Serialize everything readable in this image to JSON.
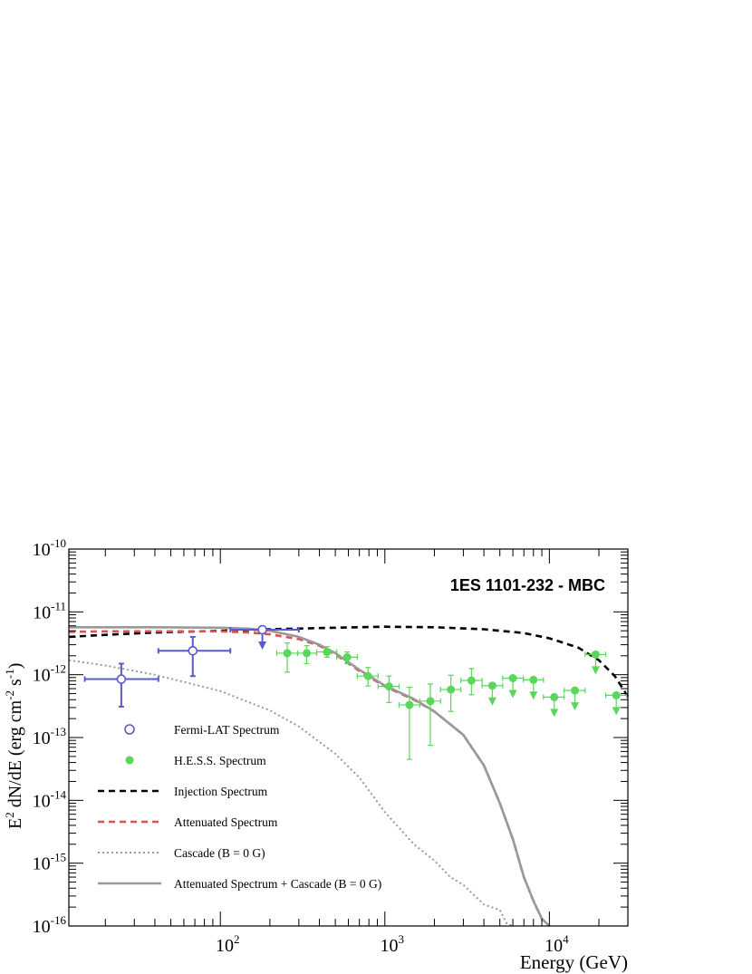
{
  "chart_data": {
    "type": "scatter",
    "title": "1ES 1101-232 - MBC",
    "xlabel": "Energy (GeV)",
    "ylabel_parts": [
      "E",
      "2",
      " dN/dE (erg cm",
      "-2",
      " s",
      "-1",
      ")"
    ],
    "x_scale": "log",
    "y_scale": "log",
    "xlim": [
      12,
      30000
    ],
    "ylim": [
      1e-16,
      1e-10
    ],
    "x_ticks": [
      {
        "value": 100,
        "base": "10",
        "exp": "2"
      },
      {
        "value": 1000,
        "base": "10",
        "exp": "3"
      },
      {
        "value": 10000,
        "base": "10",
        "exp": "4"
      }
    ],
    "y_ticks": [
      {
        "value": 1e-16,
        "base": "10",
        "exp": "-16"
      },
      {
        "value": 1e-15,
        "base": "10",
        "exp": "-15"
      },
      {
        "value": 1e-14,
        "base": "10",
        "exp": "-14"
      },
      {
        "value": 1e-13,
        "base": "10",
        "exp": "-13"
      },
      {
        "value": 1e-12,
        "base": "10",
        "exp": "-12"
      },
      {
        "value": 1e-11,
        "base": "10",
        "exp": "-11"
      },
      {
        "value": 1e-10,
        "base": "10",
        "exp": "-10"
      }
    ],
    "grid": false,
    "legend_position": "lower-left",
    "legend": [
      {
        "label": "Fermi-LAT Spectrum",
        "kind": "open-circle",
        "color": "#5a5acc"
      },
      {
        "label": "H.E.S.S. Spectrum",
        "kind": "filled-circle",
        "color": "#5ad65a"
      },
      {
        "label": "Injection Spectrum",
        "kind": "dashed-line",
        "color": "#000000"
      },
      {
        "label": "Attenuated Spectrum",
        "kind": "dashed-line",
        "color": "#d9534f"
      },
      {
        "label": "Cascade (B = 0 G)",
        "kind": "dotted-line",
        "color": "#999999"
      },
      {
        "label": "Attenuated Spectrum + Cascade (B = 0 G)",
        "kind": "solid-line",
        "color": "#999999"
      }
    ],
    "series": [
      {
        "name": "Fermi-LAT Spectrum",
        "kind": "points",
        "color": "#5a5acc",
        "points": [
          {
            "x": 25,
            "xlo": 15,
            "xhi": 42,
            "y": 8.5e-13,
            "ylo": 3.1e-13,
            "yhi": 1.5e-12
          },
          {
            "x": 68,
            "xlo": 42,
            "xhi": 115,
            "y": 2.4e-12,
            "ylo": 9.5e-13,
            "yhi": 4e-12
          },
          {
            "x": 180,
            "xlo": 115,
            "xhi": 300,
            "y": 5.2e-12,
            "upper_limit": true
          }
        ]
      },
      {
        "name": "H.E.S.S. Spectrum",
        "kind": "points",
        "color": "#5ad65a",
        "points": [
          {
            "x": 255,
            "xlo": 220,
            "xhi": 295,
            "y": 2.2e-12,
            "ylo": 1.1e-12,
            "yhi": 3.2e-12
          },
          {
            "x": 335,
            "xlo": 295,
            "xhi": 385,
            "y": 2.2e-12,
            "ylo": 1.5e-12,
            "yhi": 2.9e-12
          },
          {
            "x": 445,
            "xlo": 385,
            "xhi": 510,
            "y": 2.3e-12,
            "ylo": 1.9e-12,
            "yhi": 2.8e-12
          },
          {
            "x": 590,
            "xlo": 510,
            "xhi": 680,
            "y": 1.9e-12,
            "ylo": 1.5e-12,
            "yhi": 2.3e-12
          },
          {
            "x": 790,
            "xlo": 680,
            "xhi": 910,
            "y": 9.5e-13,
            "ylo": 6.6e-13,
            "yhi": 1.3e-12
          },
          {
            "x": 1060,
            "xlo": 910,
            "xhi": 1220,
            "y": 6.5e-13,
            "ylo": 3.6e-13,
            "yhi": 9.5e-13
          },
          {
            "x": 1410,
            "xlo": 1220,
            "xhi": 1630,
            "y": 3.3e-13,
            "ylo": 4.5e-14,
            "yhi": 6.3e-13
          },
          {
            "x": 1890,
            "xlo": 1630,
            "xhi": 2180,
            "y": 3.8e-13,
            "ylo": 7.5e-14,
            "yhi": 7.1e-13
          },
          {
            "x": 2520,
            "xlo": 2180,
            "xhi": 2900,
            "y": 5.8e-13,
            "ylo": 2.6e-13,
            "yhi": 9.8e-13
          },
          {
            "x": 3360,
            "xlo": 2900,
            "xhi": 3900,
            "y": 8.1e-13,
            "ylo": 4.8e-13,
            "yhi": 1.25e-12
          },
          {
            "x": 4500,
            "xlo": 3900,
            "xhi": 5200,
            "y": 6.7e-13,
            "upper_limit": true
          },
          {
            "x": 6000,
            "xlo": 5200,
            "xhi": 6950,
            "y": 8.8e-13,
            "upper_limit": true
          },
          {
            "x": 8000,
            "xlo": 6950,
            "xhi": 9200,
            "y": 8.3e-13,
            "upper_limit": true
          },
          {
            "x": 10700,
            "xlo": 9200,
            "xhi": 12300,
            "y": 4.4e-13,
            "upper_limit": true
          },
          {
            "x": 14300,
            "xlo": 12300,
            "xhi": 16500,
            "y": 5.6e-13,
            "upper_limit": true
          },
          {
            "x": 19100,
            "xlo": 16500,
            "xhi": 22000,
            "y": 2.1e-12,
            "upper_limit": true
          },
          {
            "x": 25500,
            "xlo": 22000,
            "xhi": 29500,
            "y": 4.7e-13,
            "upper_limit": true
          }
        ]
      },
      {
        "name": "Injection Spectrum",
        "kind": "line",
        "dash": "dashed",
        "color": "#000000",
        "x": [
          12,
          20,
          40,
          100,
          200,
          500,
          1000,
          2000,
          4000,
          7000,
          10000,
          15000,
          20000,
          25000,
          30000
        ],
        "y": [
          4e-12,
          4.3e-12,
          4.7e-12,
          5e-12,
          5.3e-12,
          5.6e-12,
          5.8e-12,
          5.7e-12,
          5.3e-12,
          4.6e-12,
          3.8e-12,
          2.7e-12,
          1.7e-12,
          9.5e-13,
          4.5e-13
        ]
      },
      {
        "name": "Attenuated Spectrum",
        "kind": "line",
        "dash": "dashed",
        "color": "#d9534f",
        "x": [
          12,
          20,
          40,
          100,
          150,
          200,
          300,
          400,
          500,
          700,
          1000,
          1500,
          2000,
          3000,
          4000,
          5000,
          6000,
          7000,
          8000,
          9000,
          10000
        ],
        "y": [
          4.8e-12,
          4.9e-12,
          4.9e-12,
          4.9e-12,
          4.7e-12,
          4.4e-12,
          3.7e-12,
          2.9e-12,
          2.1e-12,
          1.15e-12,
          6.5e-13,
          4e-13,
          2.6e-13,
          1.1e-13,
          3.6e-14,
          9e-15,
          2.4e-15,
          6e-16,
          2.5e-16,
          1.3e-16,
          1e-16
        ]
      },
      {
        "name": "Cascade (B = 0 G)",
        "kind": "line",
        "dash": "dotted",
        "color": "#999999",
        "x": [
          12,
          20,
          40,
          100,
          200,
          300,
          500,
          700,
          1000,
          1500,
          2000,
          2500,
          3000,
          4000,
          5000,
          5500,
          6000
        ],
        "y": [
          1.7e-12,
          1.4e-12,
          1e-12,
          5.5e-13,
          2.7e-13,
          1.5e-13,
          5.5e-14,
          2.3e-14,
          6.5e-15,
          2e-15,
          1.1e-15,
          6e-16,
          4.5e-16,
          2.2e-16,
          1.8e-16,
          1.1e-16,
          1e-16
        ]
      },
      {
        "name": "Attenuated Spectrum + Cascade (B = 0 G)",
        "kind": "line",
        "dash": "solid",
        "color": "#999999",
        "x": [
          12,
          20,
          40,
          100,
          150,
          200,
          300,
          400,
          500,
          700,
          1000,
          1500,
          2000,
          3000,
          4000,
          5000,
          6000,
          7000,
          8000,
          9000,
          10000
        ],
        "y": [
          5.7e-12,
          5.7e-12,
          5.7e-12,
          5.6e-12,
          5.4e-12,
          5e-12,
          4e-12,
          3e-12,
          2.2e-12,
          1.2e-12,
          6.7e-13,
          4.1e-13,
          2.6e-13,
          1.1e-13,
          3.6e-14,
          9e-15,
          2.4e-15,
          6e-16,
          2.5e-16,
          1.3e-16,
          1e-16
        ]
      }
    ]
  }
}
